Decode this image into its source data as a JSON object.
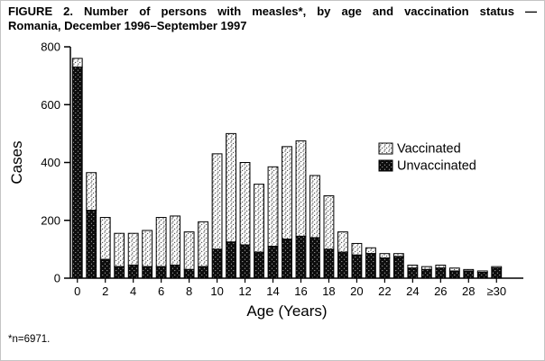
{
  "figure": {
    "title_line1": "FIGURE 2. Number of persons with measles*, by age and vaccination status —",
    "title_line2": "Romania, December 1996–September 1997",
    "footnote": "*n=6971."
  },
  "chart_data": {
    "type": "bar",
    "stacked": true,
    "title": "FIGURE 2. Number of persons with measles*, by age and vaccination status — Romania, December 1996–September 1997",
    "xlabel": "Age (Years)",
    "ylabel": "Cases",
    "ylim": [
      0,
      800
    ],
    "yticks": [
      0,
      200,
      400,
      600,
      800
    ],
    "xtick_every": 2,
    "categories": [
      "0",
      "1",
      "2",
      "3",
      "4",
      "5",
      "6",
      "7",
      "8",
      "9",
      "10",
      "11",
      "12",
      "13",
      "14",
      "15",
      "16",
      "17",
      "18",
      "19",
      "20",
      "21",
      "22",
      "23",
      "24",
      "25",
      "26",
      "27",
      "28",
      "29",
      "≥30"
    ],
    "series": [
      {
        "name": "Unvaccinated",
        "pattern": "white speckle on black",
        "values": [
          730,
          235,
          65,
          40,
          45,
          40,
          40,
          45,
          30,
          40,
          100,
          125,
          115,
          90,
          110,
          135,
          145,
          140,
          100,
          90,
          80,
          85,
          70,
          75,
          35,
          30,
          35,
          25,
          25,
          20,
          35
        ]
      },
      {
        "name": "Vaccinated",
        "pattern": "black speckle on white",
        "values": [
          30,
          130,
          145,
          115,
          110,
          125,
          170,
          170,
          130,
          155,
          330,
          375,
          285,
          235,
          275,
          320,
          330,
          215,
          185,
          70,
          40,
          20,
          15,
          10,
          10,
          10,
          10,
          10,
          5,
          5,
          5
        ]
      }
    ],
    "legend": {
      "position": "inside-right",
      "order": [
        "Vaccinated",
        "Unvaccinated"
      ]
    },
    "grid": false,
    "footnote": "*n=6971."
  },
  "colors": {
    "background": "#ffffff",
    "text": "#000000",
    "bar_outline": "#000000",
    "unvaccinated_fill": "#0d0d0d",
    "vaccinated_fill": "#ffffff"
  }
}
